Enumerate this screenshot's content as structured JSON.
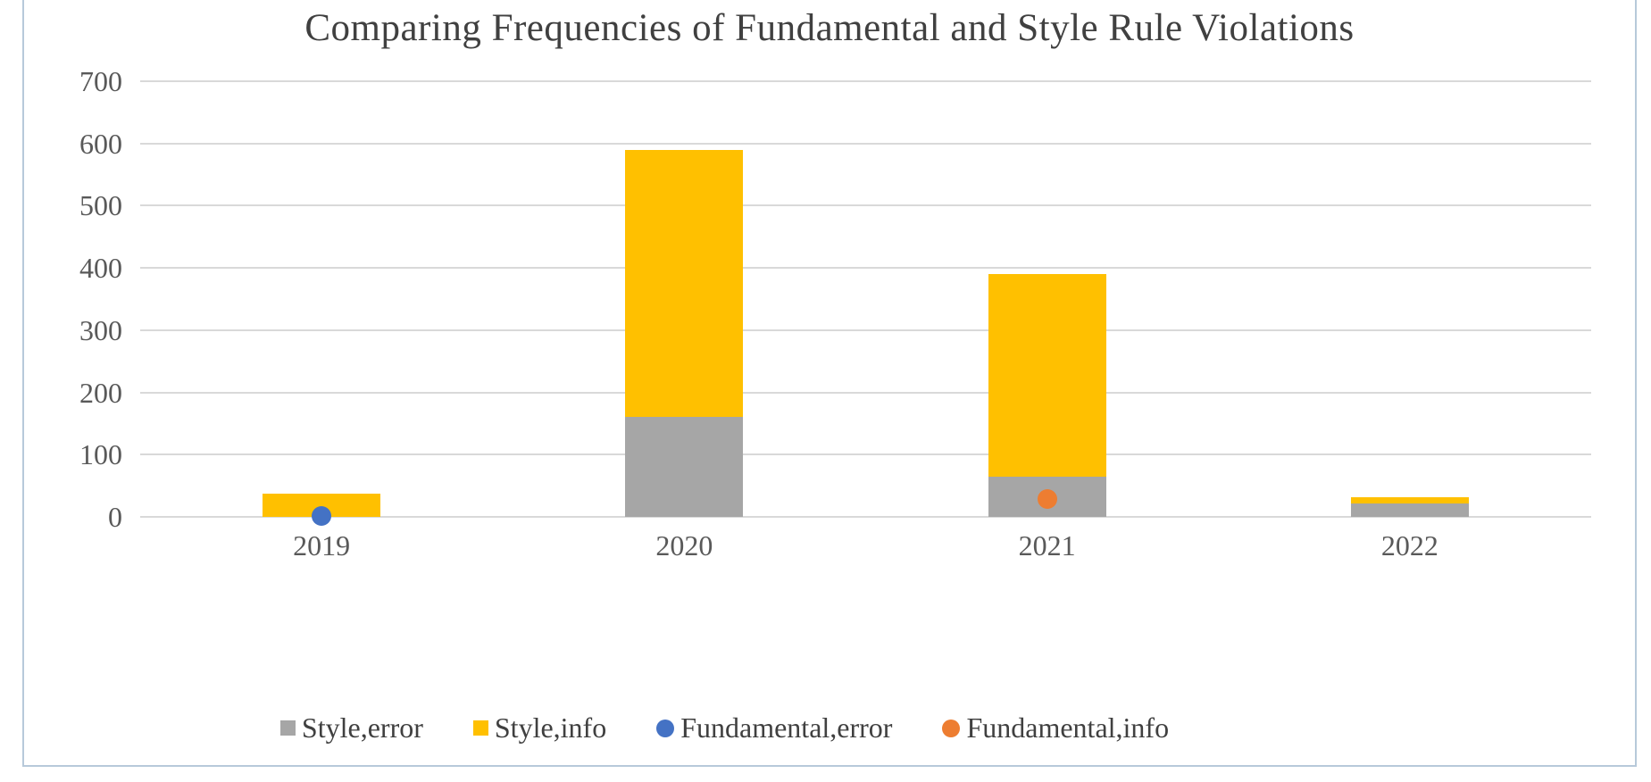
{
  "chart_data": {
    "type": "bar",
    "stacked": true,
    "title": "Comparing Frequencies of Fundamental and Style Rule Violations",
    "categories": [
      "2019",
      "2020",
      "2021",
      "2022"
    ],
    "series": [
      {
        "name": "Style,error",
        "type": "bar",
        "color": "#a6a6a6",
        "values": [
          0,
          160,
          65,
          22
        ]
      },
      {
        "name": "Style,info",
        "type": "bar",
        "color": "#ffc000",
        "values": [
          37,
          430,
          325,
          10
        ]
      },
      {
        "name": "Fundamental,error",
        "type": "point",
        "color": "#4472c4",
        "values": [
          2,
          null,
          null,
          null
        ]
      },
      {
        "name": "Fundamental,info",
        "type": "point",
        "color": "#ed7d31",
        "values": [
          null,
          null,
          28,
          null
        ]
      }
    ],
    "xlabel": "",
    "ylabel": "",
    "ylim": [
      0,
      700
    ],
    "yticks": [
      0,
      100,
      200,
      300,
      400,
      500,
      600,
      700
    ],
    "grid": true,
    "legend_position": "bottom"
  },
  "colors": {
    "gridline": "#d9d9d9",
    "axis_text": "#595959",
    "title_text": "#404040",
    "frame_border": "#b7c9da",
    "background": "#ffffff"
  }
}
